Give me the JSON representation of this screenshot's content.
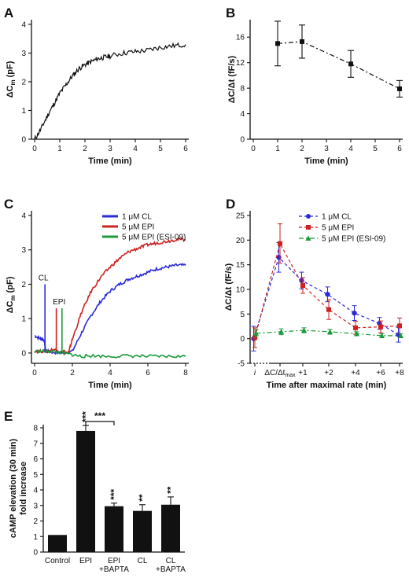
{
  "colors": {
    "black": "#111111",
    "blue": "#2b2bd8",
    "red": "#cc2222",
    "green": "#1a9a3a"
  },
  "chart_data": [
    {
      "panel": "A",
      "type": "line",
      "xlabel": "Time (min)",
      "ylabel": "ΔCm (pF)",
      "xlim": [
        0,
        6
      ],
      "ylim": [
        0,
        4
      ],
      "xticks": [
        "0",
        "1",
        "2",
        "3",
        "4",
        "5",
        "6"
      ],
      "yticks": [
        "0",
        "1",
        "2",
        "3",
        "4"
      ],
      "series": [
        {
          "color": "#111111",
          "x": [
            0,
            0.25,
            0.5,
            0.75,
            1,
            1.25,
            1.5,
            1.75,
            2,
            2.25,
            2.5,
            2.75,
            3,
            3.5,
            4,
            4.5,
            5,
            5.5,
            6
          ],
          "y": [
            0.0,
            0.35,
            0.8,
            1.2,
            1.6,
            1.9,
            2.2,
            2.45,
            2.6,
            2.7,
            2.8,
            2.85,
            2.9,
            3.0,
            3.05,
            3.1,
            3.2,
            3.25,
            3.3
          ]
        }
      ]
    },
    {
      "panel": "B",
      "type": "line",
      "xlabel": "Time (min)",
      "ylabel": "ΔC/Δt (fF/s)",
      "xlim": [
        0,
        6
      ],
      "ylim": [
        0,
        18
      ],
      "xticks": [
        "0",
        "1",
        "2",
        "3",
        "4",
        "5",
        "6"
      ],
      "yticks": [
        "0",
        "4",
        "8",
        "12",
        "16"
      ],
      "series": [
        {
          "color": "#111111",
          "x": [
            1,
            2,
            4,
            6
          ],
          "y": [
            15.0,
            15.3,
            11.8,
            7.9
          ],
          "err": [
            3.5,
            2.6,
            2.1,
            1.3
          ]
        }
      ]
    },
    {
      "panel": "C",
      "type": "line",
      "xlabel": "Time (min)",
      "ylabel": "ΔCm (pF)",
      "xlim": [
        0,
        8
      ],
      "ylim": [
        -0.3,
        4
      ],
      "xticks": [
        "0",
        "2",
        "4",
        "6",
        "8"
      ],
      "yticks": [
        "0",
        "1",
        "2",
        "3",
        "4"
      ],
      "annotations": [
        "CL",
        "EPI"
      ],
      "series": [
        {
          "name": "1 μM CL",
          "color": "#2b2bd8",
          "x": [
            0,
            0.3,
            0.5,
            0.6,
            1.0,
            1.5,
            2.0,
            2.5,
            3.0,
            3.5,
            4.0,
            4.5,
            5.0,
            5.5,
            6.0,
            6.5,
            7.0,
            7.5,
            8.0
          ],
          "y": [
            0.5,
            0.42,
            0.38,
            0.05,
            0.02,
            0.0,
            0.05,
            0.6,
            1.1,
            1.5,
            1.8,
            2.0,
            2.15,
            2.25,
            2.35,
            2.45,
            2.5,
            2.55,
            2.55
          ]
        },
        {
          "name": "5 μM EPI",
          "color": "#cc2222",
          "x": [
            0,
            0.5,
            1.0,
            1.5,
            1.8,
            2.0,
            2.5,
            3.0,
            3.5,
            4.0,
            4.5,
            5.0,
            5.5,
            6.0,
            6.5,
            7.0,
            7.5,
            8.0
          ],
          "y": [
            0.05,
            0.05,
            0.1,
            0.05,
            0.0,
            0.4,
            1.2,
            1.8,
            2.2,
            2.5,
            2.75,
            2.95,
            3.05,
            3.15,
            3.2,
            3.25,
            3.3,
            3.3
          ]
        },
        {
          "name": "5 μM EPI (ESI-09)",
          "color": "#1a9a3a",
          "x": [
            0,
            0.5,
            1.0,
            1.5,
            2.0,
            2.5,
            3.0,
            4.0,
            5.0,
            6.0,
            7.0,
            8.0
          ],
          "y": [
            0.05,
            0.05,
            0.05,
            0.0,
            -0.05,
            -0.1,
            -0.08,
            -0.1,
            -0.08,
            -0.1,
            -0.1,
            -0.1
          ]
        }
      ]
    },
    {
      "panel": "D",
      "type": "line",
      "xlabel": "Time after maximal rate (min)",
      "ylabel": "ΔC/Δt (fF/s)",
      "ylim": [
        -5,
        25
      ],
      "yticks": [
        "-5",
        "0",
        "5",
        "10",
        "15",
        "20",
        "25"
      ],
      "categories": [
        "i",
        "ΔC/Δtmax",
        "+1",
        "+2",
        "+4",
        "+6",
        "+8"
      ],
      "series": [
        {
          "name": "1 μM CL",
          "color": "#2b2bd8",
          "marker": "circle",
          "line": "dashed",
          "values": [
            0,
            16.5,
            11.8,
            9.0,
            5.2,
            3.1,
            0.8
          ],
          "err": [
            2.5,
            3.0,
            1.7,
            1.5,
            1.5,
            1.2,
            1.5
          ]
        },
        {
          "name": "5 μM EPI",
          "color": "#cc2222",
          "marker": "square",
          "line": "dashed",
          "values": [
            0.2,
            19.3,
            10.8,
            5.9,
            2.2,
            2.4,
            2.6
          ],
          "err": [
            2.0,
            4.0,
            1.6,
            2.0,
            1.3,
            1.2,
            1.6
          ]
        },
        {
          "name": "5 μM EPI (ESI-09)",
          "color": "#1a9a3a",
          "marker": "triangle",
          "line": "dashdot",
          "values": [
            1.1,
            1.4,
            1.7,
            1.4,
            1.0,
            0.6,
            0.6
          ],
          "err": [
            0.8,
            0.6,
            0.5,
            0.5,
            0.4,
            0.4,
            0.4
          ]
        }
      ]
    },
    {
      "panel": "E",
      "type": "bar",
      "ylabel": "cAMP elevation (30 min) fold increase",
      "ylabel_lines": [
        "cAMP elevation (30 min)",
        "fold increase"
      ],
      "ylim": [
        0,
        8
      ],
      "yticks": [
        "0",
        "1",
        "2",
        "3",
        "4",
        "5",
        "6",
        "7",
        "8"
      ],
      "categories": [
        [
          "Control"
        ],
        [
          "EPI"
        ],
        [
          "EPI",
          "+BAPTA"
        ],
        [
          "CL"
        ],
        [
          "CL",
          "+BAPTA"
        ]
      ],
      "values": [
        1.1,
        7.8,
        2.95,
        2.65,
        3.05
      ],
      "err": [
        0,
        0.35,
        0.2,
        0.4,
        0.5
      ],
      "significance": [
        "",
        "***",
        "***",
        "**",
        "**"
      ],
      "bracket": {
        "from": 1,
        "to": 2,
        "label": "***"
      }
    }
  ]
}
